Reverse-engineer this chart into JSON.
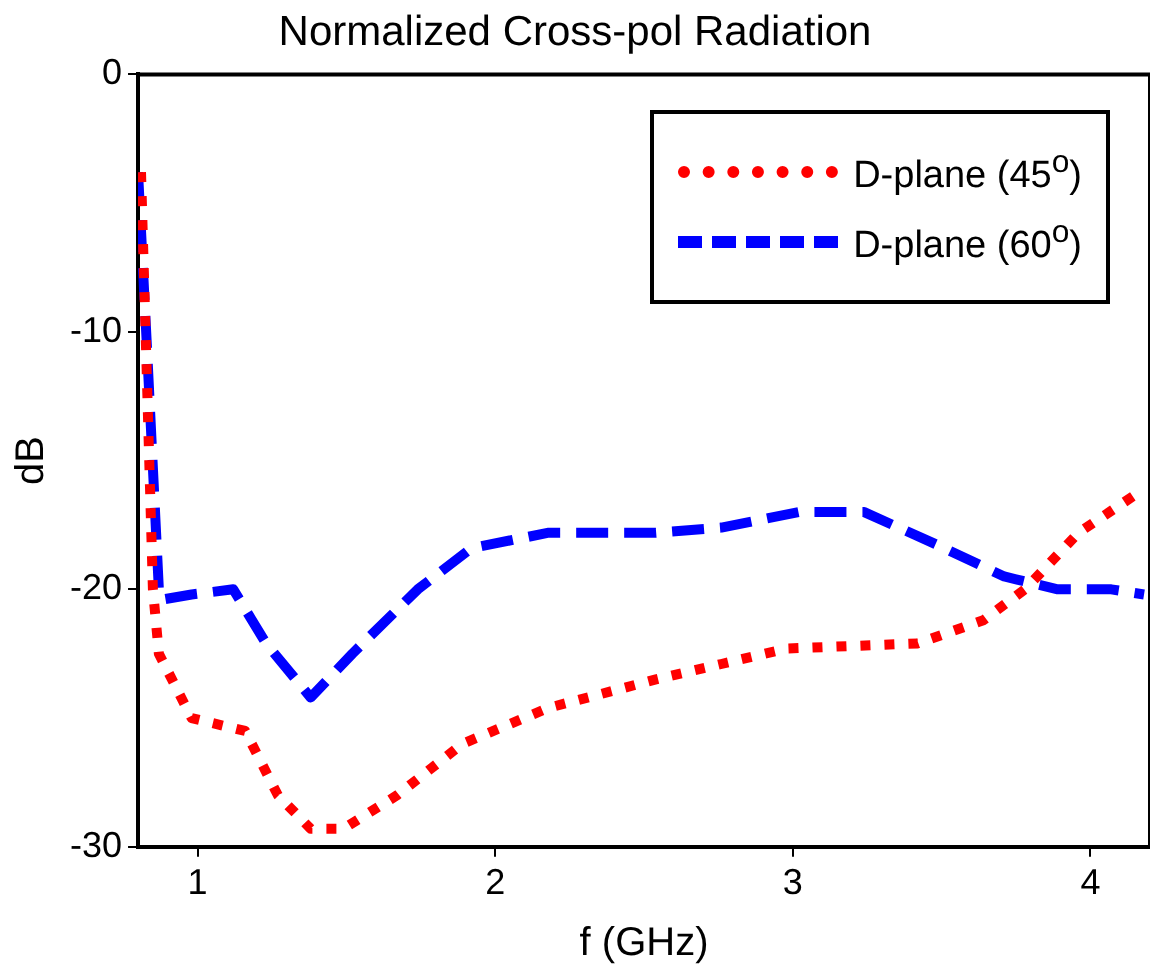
{
  "chart_data": {
    "type": "line",
    "title": "Normalized Cross-pol Radiation",
    "xlabel": "f (GHz)",
    "ylabel": "dB",
    "xlim": [
      0.8,
      4.2
    ],
    "xticks": [
      1,
      2,
      3,
      4
    ],
    "ylim": [
      -30,
      0
    ],
    "yticks": [
      0,
      -10,
      -20,
      -30
    ],
    "grid": false,
    "legend": "top right",
    "marker": "none",
    "series": [
      {
        "name": "D-plane (45$^{o}$)",
        "color": "#ff0000",
        "line_style": "dotted",
        "x": [
          0.81,
          0.85,
          0.87,
          0.98,
          1.16,
          1.27,
          1.38,
          1.49,
          1.67,
          1.89,
          2.18,
          2.54,
          2.76,
          2.98,
          3.2,
          3.42,
          3.64,
          3.78,
          3.96,
          4.18
        ],
        "values": [
          -3.8,
          -20,
          -22.5,
          -25,
          -25.5,
          -28,
          -29.3,
          -29.3,
          -28,
          -26,
          -24.6,
          -23.5,
          -22.9,
          -22.3,
          -22.2,
          -22.1,
          -21.2,
          -20,
          -17.8,
          -16.1
        ]
      },
      {
        "name": "D-plane (60$^{o}$)",
        "color": "#0000ff",
        "line_style": "dashed",
        "x": [
          0.8,
          0.83,
          0.87,
          0.88,
          0.98,
          1.12,
          1.23,
          1.38,
          1.52,
          1.74,
          1.92,
          2.18,
          2.54,
          2.76,
          3.02,
          3.24,
          3.49,
          3.71,
          3.89,
          4.07,
          4.18
        ],
        "values": [
          -3.8,
          -10.6,
          -20,
          -20.4,
          -20.2,
          -20,
          -22.1,
          -24.2,
          -22.5,
          -20,
          -18.4,
          -17.8,
          -17.8,
          -17.6,
          -17,
          -17,
          -18.3,
          -19.5,
          -20,
          -20,
          -20.2
        ]
      }
    ]
  }
}
